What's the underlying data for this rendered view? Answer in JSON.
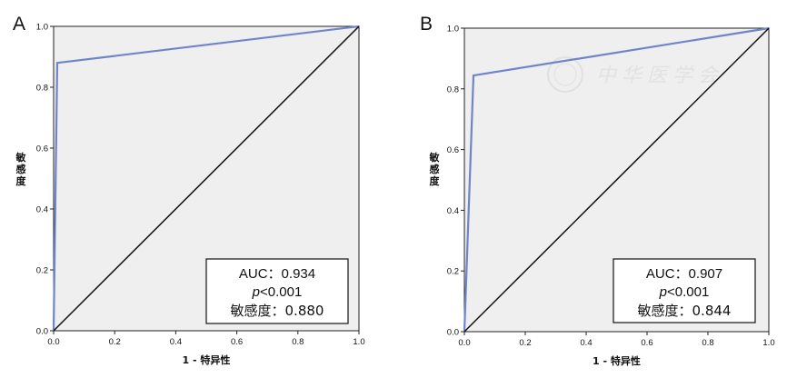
{
  "chart_data": [
    {
      "panel_label": "A",
      "type": "line",
      "xlabel": "1 - 特异性",
      "ylabel": "敏感度",
      "xlim": [
        0,
        1
      ],
      "ylim": [
        0,
        1
      ],
      "x_ticks": [
        "0.0",
        "0.2",
        "0.4",
        "0.6",
        "0.8",
        "1.0"
      ],
      "y_ticks": [
        "0.0",
        "0.2",
        "0.4",
        "0.6",
        "0.8",
        "1.0"
      ],
      "series": [
        {
          "points": [
            [
              0,
              0
            ],
            [
              0.012,
              0.88
            ],
            [
              1.0,
              1.0
            ]
          ],
          "color": "#6f85c8"
        },
        {
          "points": [
            [
              0,
              0
            ],
            [
              1,
              1
            ]
          ],
          "color": "#111111"
        }
      ],
      "annotation": {
        "auc": "AUC：0.934",
        "p": "<0.001",
        "p_symbol": "p",
        "sensitivity": "敏感度：0.880"
      },
      "colors": {
        "plot_background": "#efefef",
        "roc_curve": "#6f85c8",
        "reference_line": "#111111"
      }
    },
    {
      "panel_label": "B",
      "type": "line",
      "xlabel": "1 - 特异性",
      "ylabel": "敏感度",
      "xlim": [
        0,
        1
      ],
      "ylim": [
        0,
        1
      ],
      "x_ticks": [
        "0.0",
        "0.2",
        "0.4",
        "0.6",
        "0.8",
        "1.0"
      ],
      "y_ticks": [
        "0.0",
        "0.2",
        "0.4",
        "0.6",
        "0.8",
        "1.0"
      ],
      "series": [
        {
          "points": [
            [
              0,
              0
            ],
            [
              0.03,
              0.844
            ],
            [
              1.0,
              1.0
            ]
          ],
          "color": "#6f85c8"
        },
        {
          "points": [
            [
              0,
              0
            ],
            [
              1,
              1
            ]
          ],
          "color": "#111111"
        }
      ],
      "annotation": {
        "auc": "AUC：0.907",
        "p": "<0.001",
        "p_symbol": "p",
        "sensitivity": "敏感度：0.844"
      },
      "watermark": "中华医学会",
      "colors": {
        "plot_background": "#efefef",
        "roc_curve": "#6f85c8",
        "reference_line": "#111111"
      }
    }
  ]
}
